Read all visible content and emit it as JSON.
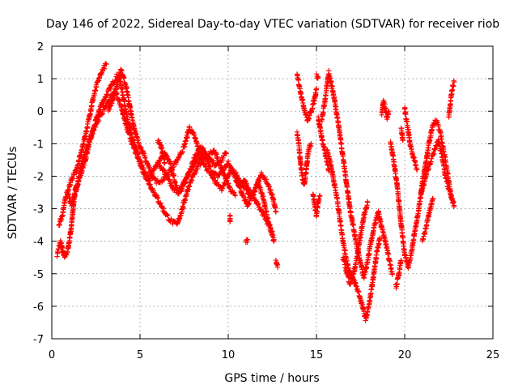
{
  "chart_data": {
    "type": "scatter",
    "title": "Day 146 of 2022, Sidereal Day-to-day VTEC variation (SDTVAR) for receiver riob",
    "xlabel": "GPS time / hours",
    "ylabel": "SDTVAR / TECUs",
    "xlim": [
      0,
      25
    ],
    "ylim": [
      -7,
      2
    ],
    "xticks": [
      0,
      5,
      10,
      15,
      20,
      25
    ],
    "yticks": [
      -7,
      -6,
      -5,
      -4,
      -3,
      -2,
      -1,
      0,
      1,
      2
    ],
    "grid": true,
    "marker": "+",
    "color": "#ff0000",
    "series": [
      {
        "name": "SDTVAR",
        "tracks": [
          [
            [
              0.3,
              -4.4
            ],
            [
              0.5,
              -4.0
            ],
            [
              0.7,
              -4.5
            ],
            [
              0.9,
              -4.3
            ],
            [
              1.1,
              -3.6
            ],
            [
              1.3,
              -2.5
            ],
            [
              1.6,
              -2.0
            ],
            [
              1.9,
              -1.5
            ],
            [
              2.2,
              -0.8
            ],
            [
              2.5,
              -0.3
            ],
            [
              2.8,
              0.2
            ],
            [
              3.1,
              0.5
            ],
            [
              3.4,
              0.8
            ],
            [
              3.7,
              1.1
            ],
            [
              3.9,
              0.9
            ],
            [
              4.1,
              0.3
            ],
            [
              4.3,
              -0.3
            ],
            [
              4.6,
              -0.9
            ],
            [
              4.9,
              -1.4
            ],
            [
              5.2,
              -1.8
            ],
            [
              5.5,
              -2.1
            ],
            [
              5.8,
              -1.8
            ],
            [
              6.1,
              -1.5
            ],
            [
              6.4,
              -1.3
            ],
            [
              6.7,
              -1.6
            ],
            [
              7.0,
              -2.2
            ],
            [
              7.3,
              -2.5
            ],
            [
              7.6,
              -2.1
            ],
            [
              7.9,
              -1.7
            ],
            [
              8.2,
              -1.3
            ],
            [
              8.5,
              -1.1
            ],
            [
              8.8,
              -1.5
            ],
            [
              9.1,
              -1.9
            ],
            [
              9.4,
              -2.0
            ],
            [
              9.7,
              -1.8
            ],
            [
              10.0,
              -1.6
            ],
            [
              10.3,
              -1.9
            ],
            [
              10.6,
              -2.3
            ],
            [
              10.9,
              -2.1
            ],
            [
              11.2,
              -2.5
            ],
            [
              11.6,
              -2.8
            ],
            [
              11.9,
              -3.1
            ],
            [
              12.2,
              -3.4
            ],
            [
              12.5,
              -3.7
            ]
          ],
          [
            [
              0.4,
              -3.5
            ],
            [
              0.6,
              -3.2
            ],
            [
              0.8,
              -2.6
            ],
            [
              1.0,
              -2.3
            ],
            [
              1.2,
              -2.0
            ],
            [
              1.4,
              -1.8
            ],
            [
              1.7,
              -1.2
            ],
            [
              2.0,
              -0.5
            ],
            [
              2.3,
              0.3
            ],
            [
              2.6,
              0.9
            ],
            [
              2.9,
              1.3
            ],
            [
              3.1,
              1.45
            ]
          ],
          [
            [
              3.2,
              0.0
            ],
            [
              3.6,
              0.6
            ],
            [
              3.9,
              1.3
            ],
            [
              4.2,
              0.8
            ],
            [
              4.5,
              -0.1
            ],
            [
              4.8,
              -0.8
            ],
            [
              5.1,
              -1.2
            ],
            [
              5.4,
              -1.6
            ],
            [
              5.7,
              -2.0
            ],
            [
              6.0,
              -2.2
            ],
            [
              6.3,
              -2.1
            ],
            [
              6.6,
              -1.9
            ],
            [
              6.9,
              -1.7
            ],
            [
              7.2,
              -1.4
            ],
            [
              7.5,
              -1.1
            ],
            [
              7.8,
              -0.5
            ],
            [
              8.1,
              -0.8
            ],
            [
              8.4,
              -1.3
            ],
            [
              8.7,
              -1.7
            ],
            [
              9.0,
              -1.9
            ],
            [
              9.3,
              -2.2
            ],
            [
              9.6,
              -2.4
            ],
            [
              9.9,
              -2.1
            ],
            [
              10.2,
              -1.8
            ],
            [
              10.5,
              -2.0
            ],
            [
              10.8,
              -2.6
            ],
            [
              11.1,
              -2.9
            ],
            [
              11.4,
              -2.5
            ],
            [
              11.7,
              -2.2
            ],
            [
              12.0,
              -2.7
            ],
            [
              12.3,
              -3.5
            ],
            [
              12.6,
              -4.0
            ]
          ],
          [
            [
              0.9,
              -2.5
            ],
            [
              1.1,
              -2.9
            ],
            [
              1.4,
              -2.4
            ],
            [
              1.7,
              -1.6
            ],
            [
              2.1,
              -1.0
            ],
            [
              2.4,
              -0.5
            ],
            [
              2.7,
              -0.2
            ],
            [
              3.0,
              0.1
            ],
            [
              3.3,
              0.4
            ],
            [
              3.6,
              0.6
            ],
            [
              3.9,
              0.2
            ],
            [
              4.3,
              -0.6
            ],
            [
              4.7,
              -1.2
            ],
            [
              5.0,
              -1.6
            ],
            [
              5.3,
              -2.0
            ],
            [
              5.6,
              -2.3
            ],
            [
              5.9,
              -2.6
            ],
            [
              6.2,
              -2.9
            ],
            [
              6.5,
              -3.2
            ],
            [
              6.8,
              -3.4
            ],
            [
              7.1,
              -3.5
            ],
            [
              7.4,
              -3.0
            ],
            [
              7.7,
              -2.4
            ],
            [
              8.0,
              -2.0
            ],
            [
              8.3,
              -1.7
            ],
            [
              8.6,
              -1.5
            ],
            [
              8.9,
              -1.3
            ],
            [
              9.2,
              -1.2
            ],
            [
              9.5,
              -1.6
            ],
            [
              9.8,
              -2.0
            ],
            [
              10.1,
              -2.4
            ],
            [
              10.4,
              -2.6
            ]
          ],
          [
            [
              6.0,
              -1.6
            ],
            [
              6.3,
              -1.8
            ],
            [
              6.6,
              -2.1
            ],
            [
              6.9,
              -2.4
            ],
            [
              7.2,
              -2.5
            ],
            [
              7.5,
              -2.2
            ],
            [
              7.8,
              -1.9
            ],
            [
              8.1,
              -1.6
            ],
            [
              8.4,
              -1.4
            ],
            [
              8.7,
              -1.3
            ],
            [
              9.0,
              -1.5
            ],
            [
              9.3,
              -1.7
            ],
            [
              9.6,
              -1.5
            ],
            [
              9.9,
              -1.3
            ]
          ],
          [
            [
              6.0,
              -0.9
            ],
            [
              6.2,
              -1.1
            ],
            [
              6.4,
              -1.6
            ]
          ],
          [
            [
              10.4,
              -1.9
            ],
            [
              10.7,
              -2.2
            ],
            [
              11.0,
              -2.4
            ],
            [
              11.3,
              -2.7
            ],
            [
              11.6,
              -2.3
            ],
            [
              11.9,
              -1.9
            ],
            [
              12.2,
              -2.2
            ],
            [
              12.5,
              -2.6
            ],
            [
              12.7,
              -3.1
            ]
          ],
          [
            [
              12.7,
              -4.6
            ],
            [
              12.8,
              -4.8
            ]
          ],
          [
            [
              11.0,
              -4.0
            ],
            [
              11.1,
              -3.95
            ]
          ],
          [
            [
              10.1,
              -3.2
            ],
            [
              10.1,
              -3.4
            ]
          ]
        ],
        "tracks2": [
          [
            [
              13.9,
              -0.7
            ],
            [
              14.0,
              -1.0
            ],
            [
              14.1,
              -1.6
            ],
            [
              14.2,
              -2.0
            ],
            [
              14.3,
              -2.3
            ],
            [
              14.4,
              -1.9
            ],
            [
              14.5,
              -1.4
            ],
            [
              14.6,
              -1.1
            ],
            [
              14.7,
              -1.0
            ]
          ],
          [
            [
              13.9,
              1.1
            ],
            [
              14.1,
              0.6
            ],
            [
              14.3,
              0.1
            ],
            [
              14.5,
              -0.3
            ],
            [
              14.7,
              0.0
            ],
            [
              14.9,
              0.4
            ],
            [
              15.0,
              0.7
            ]
          ],
          [
            [
              14.8,
              -2.5
            ],
            [
              14.9,
              -2.9
            ],
            [
              15.0,
              -3.2
            ],
            [
              15.1,
              -2.8
            ],
            [
              15.2,
              -2.6
            ]
          ],
          [
            [
              15.3,
              -0.3
            ],
            [
              15.5,
              0.4
            ],
            [
              15.7,
              1.2
            ],
            [
              15.9,
              0.7
            ],
            [
              16.1,
              0.1
            ],
            [
              16.3,
              -0.6
            ],
            [
              16.5,
              -1.4
            ],
            [
              16.7,
              -2.2
            ],
            [
              16.9,
              -3.0
            ],
            [
              17.1,
              -3.6
            ],
            [
              17.3,
              -4.2
            ],
            [
              17.5,
              -4.7
            ],
            [
              17.7,
              -5.1
            ],
            [
              17.9,
              -4.6
            ],
            [
              18.1,
              -4.0
            ],
            [
              18.3,
              -3.5
            ],
            [
              18.5,
              -3.1
            ],
            [
              18.7,
              -3.6
            ],
            [
              18.9,
              -4.0
            ],
            [
              19.1,
              -4.5
            ],
            [
              19.3,
              -5.0
            ]
          ],
          [
            [
              15.6,
              -1.2
            ],
            [
              15.8,
              -1.6
            ],
            [
              16.0,
              -2.2
            ],
            [
              16.2,
              -2.8
            ],
            [
              16.4,
              -3.6
            ],
            [
              16.6,
              -4.3
            ],
            [
              16.8,
              -4.8
            ],
            [
              17.0,
              -5.1
            ],
            [
              17.2,
              -5.3
            ],
            [
              17.4,
              -5.6
            ],
            [
              17.6,
              -6.0
            ],
            [
              17.8,
              -6.4
            ],
            [
              18.0,
              -5.9
            ],
            [
              18.2,
              -5.2
            ],
            [
              18.4,
              -4.4
            ],
            [
              18.6,
              -3.9
            ]
          ],
          [
            [
              16.5,
              -4.5
            ],
            [
              16.7,
              -4.9
            ],
            [
              16.9,
              -5.3
            ],
            [
              17.1,
              -5.0
            ],
            [
              17.3,
              -4.5
            ],
            [
              17.5,
              -3.8
            ],
            [
              17.7,
              -3.2
            ],
            [
              17.9,
              -2.8
            ]
          ],
          [
            [
              15.1,
              -0.2
            ],
            [
              15.3,
              -0.8
            ],
            [
              15.5,
              -1.3
            ],
            [
              15.7,
              -1.8
            ]
          ],
          [
            [
              18.7,
              -0.1
            ],
            [
              18.8,
              0.3
            ],
            [
              18.9,
              0.1
            ],
            [
              19.0,
              -0.2
            ],
            [
              19.1,
              0.0
            ]
          ],
          [
            [
              19.2,
              -1.0
            ],
            [
              19.4,
              -1.6
            ],
            [
              19.6,
              -2.4
            ],
            [
              19.8,
              -3.5
            ],
            [
              20.0,
              -4.4
            ],
            [
              20.2,
              -4.8
            ],
            [
              20.4,
              -4.3
            ],
            [
              20.6,
              -3.6
            ],
            [
              20.8,
              -3.0
            ],
            [
              21.0,
              -2.2
            ],
            [
              21.2,
              -1.6
            ],
            [
              21.4,
              -0.9
            ],
            [
              21.6,
              -0.4
            ],
            [
              21.8,
              -0.3
            ],
            [
              22.0,
              -0.6
            ],
            [
              22.2,
              -1.2
            ],
            [
              22.4,
              -1.8
            ],
            [
              22.6,
              -2.5
            ],
            [
              22.8,
              -2.9
            ]
          ],
          [
            [
              19.5,
              -5.4
            ],
            [
              19.6,
              -5.2
            ],
            [
              19.8,
              -4.6
            ]
          ],
          [
            [
              20.0,
              0.1
            ],
            [
              20.1,
              -0.3
            ],
            [
              20.2,
              -0.6
            ],
            [
              20.3,
              -1.0
            ],
            [
              20.5,
              -1.4
            ],
            [
              20.7,
              -1.8
            ]
          ],
          [
            [
              20.9,
              -2.6
            ],
            [
              21.1,
              -2.2
            ],
            [
              21.3,
              -1.8
            ],
            [
              21.5,
              -1.5
            ],
            [
              21.7,
              -1.2
            ],
            [
              21.9,
              -0.9
            ],
            [
              22.1,
              -1.3
            ],
            [
              22.3,
              -2.0
            ],
            [
              22.5,
              -2.4
            ],
            [
              22.7,
              -2.7
            ]
          ],
          [
            [
              22.5,
              -0.2
            ],
            [
              22.6,
              0.3
            ],
            [
              22.7,
              0.7
            ],
            [
              22.8,
              0.9
            ]
          ],
          [
            [
              21.0,
              -4.0
            ],
            [
              21.2,
              -3.6
            ],
            [
              21.4,
              -3.1
            ],
            [
              21.6,
              -2.7
            ]
          ],
          [
            [
              15.0,
              1.1
            ],
            [
              15.1,
              1.05
            ]
          ],
          [
            [
              19.8,
              -0.5
            ],
            [
              19.9,
              -0.9
            ]
          ]
        ]
      }
    ]
  }
}
